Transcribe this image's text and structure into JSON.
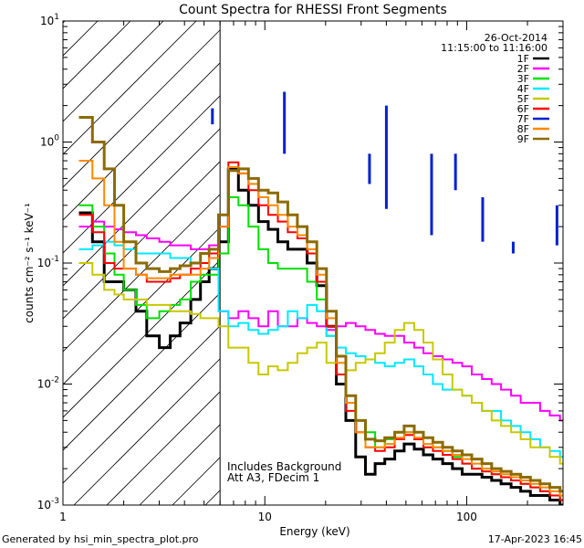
{
  "chart_data": {
    "type": "line",
    "title": "Count Spectra for RHESSI Front Segments",
    "xlabel": "Energy (keV)",
    "ylabel": "counts cm⁻² s⁻¹ keV⁻¹",
    "xscale": "log",
    "yscale": "log",
    "xlim": [
      1,
      300
    ],
    "ylim": [
      0.001,
      10
    ],
    "x_ticks": [
      {
        "value": 1,
        "label": "1"
      },
      {
        "value": 10,
        "label": "10"
      },
      {
        "value": 100,
        "label": "100"
      }
    ],
    "y_ticks": [
      {
        "value": 10,
        "base": "10",
        "exp": "1"
      },
      {
        "value": 1,
        "base": "10",
        "exp": "0"
      },
      {
        "value": 0.1,
        "base": "10",
        "exp": "-1"
      },
      {
        "value": 0.01,
        "base": "10",
        "exp": "-2"
      },
      {
        "value": 0.001,
        "base": "10",
        "exp": "-3"
      }
    ],
    "hatched_region": {
      "x_start": 1,
      "x_end": 6
    },
    "date": "26-Oct-2014",
    "time_range": "11:15:00 to 11:16:00",
    "annotations": [
      "Includes Background",
      "Att A3, FDecim 1"
    ],
    "series": [
      {
        "name": "1F",
        "color": "#000000",
        "width": 3,
        "x": [
          1.2,
          1.4,
          1.6,
          1.8,
          2.0,
          2.3,
          2.6,
          3.0,
          3.4,
          3.8,
          4.3,
          4.8,
          5.3,
          5.9,
          6.6,
          7.4,
          8.3,
          9.3,
          10.4,
          11.6,
          13.0,
          14.5,
          16.2,
          18.1,
          20.2,
          22.6,
          25.2,
          28.2,
          31.5,
          35.2,
          39.3,
          44,
          49,
          55,
          61,
          68,
          76,
          85,
          95,
          106,
          119,
          133,
          148,
          166,
          185,
          207,
          231,
          258,
          290
        ],
        "y": [
          0.26,
          0.15,
          0.07,
          0.07,
          0.06,
          0.04,
          0.025,
          0.02,
          0.025,
          0.032,
          0.05,
          0.07,
          0.09,
          0.15,
          0.6,
          0.4,
          0.3,
          0.22,
          0.19,
          0.15,
          0.13,
          0.13,
          0.1,
          0.065,
          0.03,
          0.01,
          0.005,
          0.0025,
          0.0018,
          0.0022,
          0.0024,
          0.0028,
          0.0032,
          0.0029,
          0.0026,
          0.0024,
          0.0022,
          0.002,
          0.0018,
          0.0018,
          0.0017,
          0.0016,
          0.0015,
          0.0014,
          0.0013,
          0.0012,
          0.0012,
          0.0011,
          0.001
        ]
      },
      {
        "name": "2F",
        "color": "#ff00ff",
        "width": 2,
        "x": [
          1.2,
          1.4,
          1.6,
          1.8,
          2.0,
          2.3,
          2.6,
          3.0,
          3.4,
          3.8,
          4.3,
          4.8,
          5.3,
          5.9,
          6.6,
          7.4,
          8.3,
          9.3,
          10.4,
          11.6,
          13.0,
          14.5,
          16.2,
          18.1,
          20.2,
          22.6,
          25.2,
          28.2,
          31.5,
          35.2,
          39.3,
          44,
          49,
          55,
          61,
          68,
          76,
          85,
          95,
          106,
          119,
          133,
          148,
          166,
          185,
          207,
          231,
          258,
          290
        ],
        "y": [
          0.2,
          0.22,
          0.2,
          0.19,
          0.18,
          0.17,
          0.16,
          0.15,
          0.14,
          0.14,
          0.13,
          0.13,
          0.14,
          0.04,
          0.035,
          0.04,
          0.035,
          0.03,
          0.04,
          0.03,
          0.03,
          0.035,
          0.032,
          0.03,
          0.028,
          0.03,
          0.032,
          0.03,
          0.028,
          0.026,
          0.025,
          0.025,
          0.022,
          0.02,
          0.018,
          0.017,
          0.016,
          0.015,
          0.014,
          0.012,
          0.011,
          0.01,
          0.009,
          0.008,
          0.007,
          0.007,
          0.006,
          0.0055,
          0.005
        ]
      },
      {
        "name": "3F",
        "color": "#00e000",
        "width": 2,
        "x": [
          1.2,
          1.4,
          1.6,
          1.8,
          2.0,
          2.3,
          2.6,
          3.0,
          3.4,
          3.8,
          4.3,
          4.8,
          5.3,
          5.9,
          6.6,
          7.4,
          8.3,
          9.3,
          10.4,
          11.6,
          13.0,
          14.5,
          16.2,
          18.1,
          20.2,
          22.6,
          25.2,
          28.2,
          31.5,
          35.2,
          39.3,
          44,
          49,
          55,
          61,
          68,
          76,
          85,
          95,
          106,
          119,
          133,
          148,
          166,
          185,
          207,
          231,
          258,
          290
        ],
        "y": [
          0.3,
          0.2,
          0.12,
          0.08,
          0.06,
          0.045,
          0.035,
          0.04,
          0.045,
          0.05,
          0.07,
          0.08,
          0.08,
          0.12,
          0.35,
          0.3,
          0.2,
          0.13,
          0.1,
          0.09,
          0.09,
          0.09,
          0.07,
          0.05,
          0.025,
          0.012,
          0.008,
          0.005,
          0.004,
          0.003,
          0.0035,
          0.004,
          0.004,
          0.0035,
          0.003,
          0.003,
          0.0028,
          0.0025,
          0.0022,
          0.002,
          0.0019,
          0.0018,
          0.0017,
          0.0016,
          0.0015,
          0.0014,
          0.0013,
          0.0012,
          0.0011
        ]
      },
      {
        "name": "4F",
        "color": "#00e8ff",
        "width": 2,
        "x": [
          1.2,
          1.4,
          1.6,
          1.8,
          2.0,
          2.3,
          2.6,
          3.0,
          3.4,
          3.8,
          4.3,
          4.8,
          5.3,
          5.9,
          6.6,
          7.4,
          8.3,
          9.3,
          10.4,
          11.6,
          13.0,
          14.5,
          16.2,
          18.1,
          20.2,
          22.6,
          25.2,
          28.2,
          31.5,
          35.2,
          39.3,
          44,
          49,
          55,
          61,
          68,
          76,
          85,
          95,
          106,
          119,
          133,
          148,
          166,
          185,
          207,
          231,
          258,
          290
        ],
        "y": [
          0.13,
          0.14,
          0.15,
          0.14,
          0.13,
          0.12,
          0.12,
          0.12,
          0.11,
          0.11,
          0.1,
          0.1,
          0.09,
          0.04,
          0.03,
          0.032,
          0.028,
          0.026,
          0.028,
          0.03,
          0.04,
          0.035,
          0.045,
          0.04,
          0.025,
          0.02,
          0.018,
          0.017,
          0.016,
          0.015,
          0.014,
          0.015,
          0.016,
          0.014,
          0.012,
          0.01,
          0.009,
          0.009,
          0.008,
          0.007,
          0.006,
          0.006,
          0.005,
          0.0045,
          0.004,
          0.0035,
          0.003,
          0.0028,
          0.0025
        ]
      },
      {
        "name": "5F",
        "color": "#c8c800",
        "width": 2,
        "x": [
          1.2,
          1.4,
          1.6,
          1.8,
          2.0,
          2.3,
          2.6,
          3.0,
          3.4,
          3.8,
          4.3,
          4.8,
          5.3,
          5.9,
          6.6,
          7.4,
          8.3,
          9.3,
          10.4,
          11.6,
          13.0,
          14.5,
          16.2,
          18.1,
          20.2,
          22.6,
          25.2,
          28.2,
          31.5,
          35.2,
          39.3,
          44,
          49,
          55,
          61,
          68,
          76,
          85,
          95,
          106,
          119,
          133,
          148,
          166,
          185,
          207,
          231,
          258,
          290
        ],
        "y": [
          0.1,
          0.08,
          0.06,
          0.055,
          0.05,
          0.05,
          0.045,
          0.045,
          0.04,
          0.04,
          0.038,
          0.035,
          0.035,
          0.03,
          0.02,
          0.02,
          0.015,
          0.012,
          0.014,
          0.013,
          0.015,
          0.018,
          0.02,
          0.022,
          0.015,
          0.012,
          0.013,
          0.015,
          0.016,
          0.018,
          0.022,
          0.028,
          0.032,
          0.028,
          0.022,
          0.016,
          0.012,
          0.009,
          0.008,
          0.007,
          0.006,
          0.005,
          0.0045,
          0.004,
          0.0035,
          0.003,
          0.003,
          0.0025,
          0.0022
        ]
      },
      {
        "name": "6F",
        "color": "#ff0000",
        "width": 2,
        "x": [
          1.2,
          1.4,
          1.6,
          1.8,
          2.0,
          2.3,
          2.6,
          3.0,
          3.4,
          3.8,
          4.3,
          4.8,
          5.3,
          5.9,
          6.6,
          7.4,
          8.3,
          9.3,
          10.4,
          11.6,
          13.0,
          14.5,
          16.2,
          18.1,
          20.2,
          22.6,
          25.2,
          28.2,
          31.5,
          35.2,
          39.3,
          44,
          49,
          55,
          61,
          68,
          76,
          85,
          95,
          106,
          119,
          133,
          148,
          166,
          185,
          207,
          231,
          258,
          290
        ],
        "y": [
          0.25,
          0.18,
          0.1,
          0.09,
          0.09,
          0.08,
          0.07,
          0.07,
          0.075,
          0.08,
          0.09,
          0.1,
          0.12,
          0.2,
          0.68,
          0.55,
          0.4,
          0.3,
          0.25,
          0.22,
          0.18,
          0.16,
          0.12,
          0.07,
          0.03,
          0.012,
          0.006,
          0.004,
          0.003,
          0.0028,
          0.003,
          0.0035,
          0.0038,
          0.0035,
          0.003,
          0.0028,
          0.0026,
          0.0024,
          0.0022,
          0.002,
          0.0019,
          0.0018,
          0.0017,
          0.0016,
          0.0015,
          0.0014,
          0.0013,
          0.0012,
          0.0011
        ]
      },
      {
        "name": "7F",
        "color": "#0020d0",
        "width": 3,
        "x": [
          5.5,
          5.5,
          12.5,
          12.5,
          33,
          33,
          40,
          40,
          67,
          67,
          88,
          88,
          120,
          120,
          170,
          170,
          280,
          280
        ],
        "y": [
          1.9,
          1.4,
          2.6,
          0.8,
          0.8,
          0.45,
          2.0,
          0.28,
          0.8,
          0.17,
          0.8,
          0.4,
          0.35,
          0.15,
          0.15,
          0.12,
          0.3,
          0.14
        ]
      },
      {
        "name": "8F",
        "color": "#ff8800",
        "width": 2,
        "x": [
          1.2,
          1.4,
          1.6,
          1.8,
          2.0,
          2.3,
          2.6,
          3.0,
          3.4,
          3.8,
          4.3,
          4.8,
          5.3,
          5.9,
          6.6,
          7.4,
          8.3,
          9.3,
          10.4,
          11.6,
          13.0,
          14.5,
          16.2,
          18.1,
          20.2,
          22.6,
          25.2,
          28.2,
          31.5,
          35.2,
          39.3,
          44,
          49,
          55,
          61,
          68,
          76,
          85,
          95,
          106,
          119,
          133,
          148,
          166,
          185,
          207,
          231,
          258,
          290
        ],
        "y": [
          0.7,
          0.5,
          0.3,
          0.15,
          0.09,
          0.08,
          0.075,
          0.075,
          0.08,
          0.08,
          0.08,
          0.09,
          0.11,
          0.2,
          0.62,
          0.55,
          0.45,
          0.35,
          0.3,
          0.25,
          0.2,
          0.17,
          0.13,
          0.08,
          0.035,
          0.015,
          0.007,
          0.004,
          0.003,
          0.003,
          0.0032,
          0.0036,
          0.004,
          0.0036,
          0.0032,
          0.003,
          0.0028,
          0.0026,
          0.0024,
          0.0022,
          0.002,
          0.0019,
          0.0018,
          0.0017,
          0.0016,
          0.0015,
          0.0014,
          0.0013,
          0.0012
        ]
      },
      {
        "name": "9F",
        "color": "#8b6b00",
        "width": 3,
        "x": [
          1.2,
          1.4,
          1.6,
          1.8,
          2.0,
          2.3,
          2.6,
          3.0,
          3.4,
          3.8,
          4.3,
          4.8,
          5.3,
          5.9,
          6.6,
          7.4,
          8.3,
          9.3,
          10.4,
          11.6,
          13.0,
          14.5,
          16.2,
          18.1,
          20.2,
          22.6,
          25.2,
          28.2,
          31.5,
          35.2,
          39.3,
          44,
          49,
          55,
          61,
          68,
          76,
          85,
          95,
          106,
          119,
          133,
          148,
          166,
          185,
          207,
          231,
          258,
          290
        ],
        "y": [
          1.6,
          1.0,
          0.6,
          0.3,
          0.15,
          0.1,
          0.09,
          0.085,
          0.09,
          0.095,
          0.1,
          0.12,
          0.13,
          0.25,
          0.58,
          0.6,
          0.5,
          0.4,
          0.38,
          0.32,
          0.25,
          0.2,
          0.15,
          0.09,
          0.04,
          0.017,
          0.008,
          0.005,
          0.0035,
          0.0034,
          0.0036,
          0.004,
          0.0045,
          0.004,
          0.0036,
          0.0033,
          0.003,
          0.0028,
          0.0026,
          0.0024,
          0.0022,
          0.002,
          0.0019,
          0.0018,
          0.0017,
          0.0016,
          0.0015,
          0.0014,
          0.0013
        ]
      }
    ]
  },
  "footer": {
    "left": "Generated by hsi_min_spectra_plot.pro",
    "right": "17-Apr-2023 16:45"
  }
}
